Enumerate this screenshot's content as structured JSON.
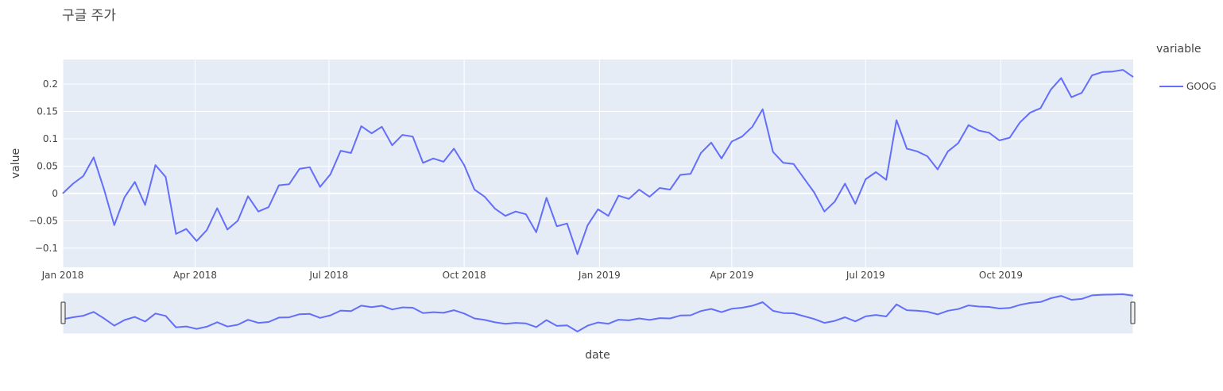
{
  "chart_data": {
    "type": "line",
    "title": "구글 주가",
    "xlabel": "date",
    "ylabel": "value",
    "xlim": [
      "2018-01-01",
      "2019-12-30"
    ],
    "ylim": [
      -0.135,
      0.245
    ],
    "grid": true,
    "legend_title": "variable",
    "legend_position": "right",
    "range_slider": true,
    "colors": {
      "series": "#636efa",
      "plot_bg": "#e5ecf6",
      "grid": "#ffffff"
    },
    "x_ticks": [
      {
        "label": "Jan 2018",
        "date": "2018-01-01"
      },
      {
        "label": "Apr 2018",
        "date": "2018-04-01"
      },
      {
        "label": "Jul 2018",
        "date": "2018-07-01"
      },
      {
        "label": "Oct 2018",
        "date": "2018-10-01"
      },
      {
        "label": "Jan 2019",
        "date": "2019-01-01"
      },
      {
        "label": "Apr 2019",
        "date": "2019-04-01"
      },
      {
        "label": "Jul 2019",
        "date": "2019-07-01"
      },
      {
        "label": "Oct 2019",
        "date": "2019-10-01"
      }
    ],
    "y_ticks": [
      {
        "label": "−0.1",
        "value": -0.1
      },
      {
        "label": "−0.05",
        "value": -0.05
      },
      {
        "label": "0",
        "value": 0
      },
      {
        "label": "0.05",
        "value": 0.05
      },
      {
        "label": "0.1",
        "value": 0.1
      },
      {
        "label": "0.15",
        "value": 0.15
      },
      {
        "label": "0.2",
        "value": 0.2
      }
    ],
    "series": [
      {
        "name": "GOOG",
        "points": [
          [
            "2018-01-01",
            0.0
          ],
          [
            "2018-01-08",
            0.018
          ],
          [
            "2018-01-15",
            0.032
          ],
          [
            "2018-01-22",
            0.066
          ],
          [
            "2018-01-29",
            0.008
          ],
          [
            "2018-02-05",
            -0.058
          ],
          [
            "2018-02-12",
            -0.007
          ],
          [
            "2018-02-19",
            0.021
          ],
          [
            "2018-02-26",
            -0.021
          ],
          [
            "2018-03-05",
            0.052
          ],
          [
            "2018-03-12",
            0.03
          ],
          [
            "2018-03-19",
            -0.074
          ],
          [
            "2018-03-26",
            -0.065
          ],
          [
            "2018-04-02",
            -0.087
          ],
          [
            "2018-04-09",
            -0.067
          ],
          [
            "2018-04-16",
            -0.027
          ],
          [
            "2018-04-23",
            -0.066
          ],
          [
            "2018-04-30",
            -0.05
          ],
          [
            "2018-05-07",
            -0.005
          ],
          [
            "2018-05-14",
            -0.033
          ],
          [
            "2018-05-21",
            -0.025
          ],
          [
            "2018-05-28",
            0.015
          ],
          [
            "2018-06-04",
            0.017
          ],
          [
            "2018-06-11",
            0.045
          ],
          [
            "2018-06-18",
            0.048
          ],
          [
            "2018-06-25",
            0.012
          ],
          [
            "2018-07-02",
            0.035
          ],
          [
            "2018-07-09",
            0.078
          ],
          [
            "2018-07-16",
            0.074
          ],
          [
            "2018-07-23",
            0.123
          ],
          [
            "2018-07-30",
            0.11
          ],
          [
            "2018-08-06",
            0.122
          ],
          [
            "2018-08-13",
            0.088
          ],
          [
            "2018-08-20",
            0.107
          ],
          [
            "2018-08-27",
            0.104
          ],
          [
            "2018-09-03",
            0.056
          ],
          [
            "2018-09-10",
            0.064
          ],
          [
            "2018-09-17",
            0.058
          ],
          [
            "2018-09-24",
            0.082
          ],
          [
            "2018-10-01",
            0.052
          ],
          [
            "2018-10-08",
            0.007
          ],
          [
            "2018-10-15",
            -0.006
          ],
          [
            "2018-10-22",
            -0.028
          ],
          [
            "2018-10-29",
            -0.041
          ],
          [
            "2018-11-05",
            -0.033
          ],
          [
            "2018-11-12",
            -0.038
          ],
          [
            "2018-11-19",
            -0.071
          ],
          [
            "2018-11-26",
            -0.008
          ],
          [
            "2018-12-03",
            -0.06
          ],
          [
            "2018-12-10",
            -0.055
          ],
          [
            "2018-12-17",
            -0.111
          ],
          [
            "2018-12-24",
            -0.058
          ],
          [
            "2018-12-31",
            -0.029
          ],
          [
            "2019-01-07",
            -0.041
          ],
          [
            "2019-01-14",
            -0.004
          ],
          [
            "2019-01-21",
            -0.01
          ],
          [
            "2019-01-28",
            0.007
          ],
          [
            "2019-02-04",
            -0.006
          ],
          [
            "2019-02-11",
            0.01
          ],
          [
            "2019-02-18",
            0.007
          ],
          [
            "2019-02-25",
            0.034
          ],
          [
            "2019-03-04",
            0.036
          ],
          [
            "2019-03-11",
            0.074
          ],
          [
            "2019-03-18",
            0.093
          ],
          [
            "2019-03-25",
            0.064
          ],
          [
            "2019-04-01",
            0.095
          ],
          [
            "2019-04-08",
            0.104
          ],
          [
            "2019-04-15",
            0.122
          ],
          [
            "2019-04-22",
            0.154
          ],
          [
            "2019-04-29",
            0.076
          ],
          [
            "2019-05-06",
            0.056
          ],
          [
            "2019-05-13",
            0.054
          ],
          [
            "2019-05-20",
            0.028
          ],
          [
            "2019-05-27",
            0.002
          ],
          [
            "2019-06-03",
            -0.033
          ],
          [
            "2019-06-10",
            -0.015
          ],
          [
            "2019-06-17",
            0.018
          ],
          [
            "2019-06-24",
            -0.019
          ],
          [
            "2019-07-01",
            0.026
          ],
          [
            "2019-07-08",
            0.039
          ],
          [
            "2019-07-15",
            0.025
          ],
          [
            "2019-07-22",
            0.134
          ],
          [
            "2019-07-29",
            0.082
          ],
          [
            "2019-08-05",
            0.077
          ],
          [
            "2019-08-12",
            0.068
          ],
          [
            "2019-08-19",
            0.044
          ],
          [
            "2019-08-26",
            0.077
          ],
          [
            "2019-09-02",
            0.092
          ],
          [
            "2019-09-09",
            0.125
          ],
          [
            "2019-09-16",
            0.115
          ],
          [
            "2019-09-23",
            0.111
          ],
          [
            "2019-09-30",
            0.097
          ],
          [
            "2019-10-07",
            0.102
          ],
          [
            "2019-10-14",
            0.13
          ],
          [
            "2019-10-21",
            0.148
          ],
          [
            "2019-10-28",
            0.156
          ],
          [
            "2019-11-04",
            0.19
          ],
          [
            "2019-11-11",
            0.211
          ],
          [
            "2019-11-18",
            0.176
          ],
          [
            "2019-11-25",
            0.184
          ],
          [
            "2019-12-02",
            0.216
          ],
          [
            "2019-12-09",
            0.222
          ],
          [
            "2019-12-16",
            0.223
          ],
          [
            "2019-12-23",
            0.226
          ],
          [
            "2019-12-30",
            0.213
          ]
        ]
      }
    ]
  }
}
